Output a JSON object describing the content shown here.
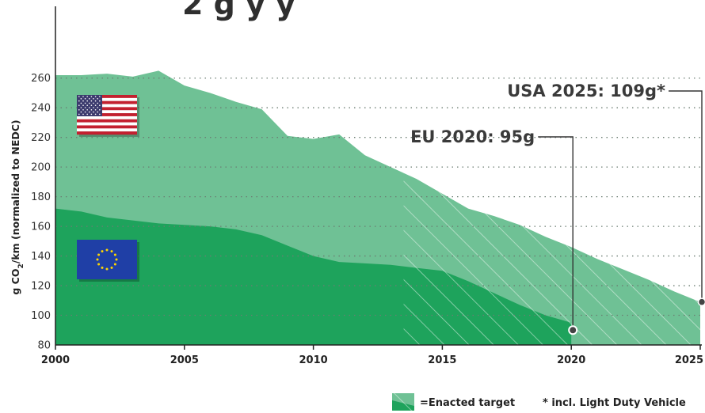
{
  "chart_data": {
    "type": "area",
    "title_fragment": "2 g  y    y",
    "ylabel_pre": "g CO",
    "ylabel_sub": "2",
    "ylabel_post": "/km (normalized to NEDC)",
    "xlim": [
      2000,
      2025
    ],
    "ylim": [
      80,
      270
    ],
    "yticks": [
      80,
      100,
      120,
      140,
      160,
      180,
      200,
      220,
      240,
      260
    ],
    "xticks": [
      "2000",
      "2005",
      "2010",
      "2015",
      "2020",
      "2025"
    ],
    "grid": "horizontal-dotted",
    "enacted_from_year": 2013.5,
    "series": [
      {
        "name": "USA",
        "flag": "us-flag",
        "color": "#6fc195",
        "x": [
          2000,
          2001,
          2002,
          2003,
          2004,
          2005,
          2006,
          2007,
          2008,
          2009,
          2010,
          2011,
          2012,
          2013,
          2014,
          2015,
          2016,
          2017,
          2018,
          2019,
          2020,
          2021,
          2022,
          2023,
          2024,
          2025
        ],
        "y": [
          262,
          262,
          263,
          261,
          265,
          255,
          250,
          244,
          239,
          221,
          219,
          222,
          208,
          200,
          192,
          182,
          172,
          167,
          161,
          153,
          146,
          138,
          131,
          124,
          116,
          109
        ]
      },
      {
        "name": "EU",
        "flag": "eu-flag",
        "color": "#1ea35c",
        "x": [
          2000,
          2001,
          2002,
          2003,
          2004,
          2005,
          2006,
          2007,
          2008,
          2009,
          2010,
          2011,
          2012,
          2013,
          2014,
          2015,
          2016,
          2017,
          2018,
          2019,
          2020
        ],
        "y": [
          172,
          170,
          166,
          164,
          162,
          161,
          160,
          158,
          154,
          147,
          140,
          136,
          135,
          134,
          132,
          130,
          123,
          115,
          107,
          100,
          95
        ]
      }
    ],
    "annotations": [
      {
        "text": "USA 2025: 109g*",
        "x": 2025,
        "y": 109
      },
      {
        "text": "EU 2020: 95g",
        "x": 2020,
        "y": 90
      }
    ],
    "legend": [
      {
        "label": "=Enacted target",
        "swatch": "enacted-hatch"
      },
      {
        "label": "* incl. Light Duty Vehicle"
      }
    ]
  }
}
